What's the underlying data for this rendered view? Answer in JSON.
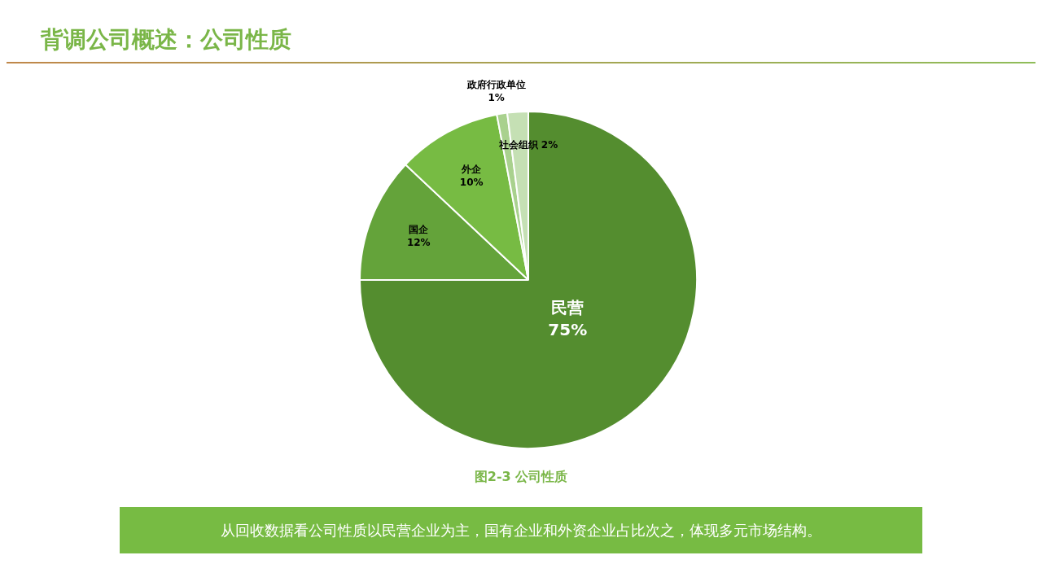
{
  "chart_data": {
    "type": "pie",
    "title": "背调公司概述：公司性质",
    "categories": [
      "民营",
      "国企",
      "外企",
      "政府行政单位",
      "社会组织"
    ],
    "values": [
      75,
      12,
      10,
      1,
      2
    ],
    "value_labels": [
      "75%",
      "12%",
      "10%",
      "1%",
      "2%"
    ],
    "colors": [
      "#548d2f",
      "#64a33a",
      "#77bb43",
      "#a9d18e",
      "#c5e0b4"
    ],
    "legend": false,
    "annotations": [
      "图2-3  公司性质",
      "从回收数据看公司性质以民营企业为主，国有企业和外资企业占比次之，体现多元市场结构。"
    ]
  }
}
